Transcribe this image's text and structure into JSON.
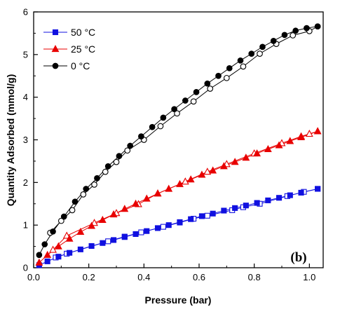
{
  "chart_data": {
    "type": "scatter",
    "xlabel": "Pressure (bar)",
    "ylabel": "Quantity Adsorbed (mmol/g)",
    "xlim": [
      0.0,
      1.05
    ],
    "ylim": [
      0,
      6
    ],
    "xticks": [
      "0.0",
      "0.2",
      "0.4",
      "0.6",
      "0.8",
      "1.0"
    ],
    "yticks": [
      "0",
      "1",
      "2",
      "3",
      "4",
      "5",
      "6"
    ],
    "grid": false,
    "legend_position": "top-left",
    "panel_label": "(b)",
    "series": [
      {
        "name": "50 °C",
        "color": "#1010e0",
        "marker": "square",
        "adsorption": {
          "x": [
            0.02,
            0.05,
            0.09,
            0.13,
            0.17,
            0.21,
            0.25,
            0.29,
            0.33,
            0.37,
            0.41,
            0.45,
            0.49,
            0.53,
            0.57,
            0.61,
            0.65,
            0.69,
            0.73,
            0.77,
            0.81,
            0.85,
            0.89,
            0.93,
            0.97,
            1.03
          ],
          "y": [
            0.06,
            0.15,
            0.26,
            0.35,
            0.43,
            0.51,
            0.58,
            0.65,
            0.72,
            0.79,
            0.86,
            0.93,
            1.0,
            1.07,
            1.14,
            1.21,
            1.27,
            1.34,
            1.4,
            1.46,
            1.52,
            1.58,
            1.64,
            1.7,
            1.76,
            1.85
          ]
        },
        "desorption": {
          "x": [
            0.08,
            0.12,
            0.27,
            0.33,
            0.39,
            0.47,
            0.53,
            0.58,
            0.63,
            0.72,
            0.76,
            0.82,
            0.92,
            0.98,
            1.03
          ],
          "y": [
            0.24,
            0.33,
            0.62,
            0.73,
            0.83,
            0.96,
            1.06,
            1.15,
            1.22,
            1.35,
            1.42,
            1.5,
            1.68,
            1.78,
            1.85
          ]
        }
      },
      {
        "name": "25 °C",
        "color": "#e80000",
        "marker": "triangle",
        "adsorption": {
          "x": [
            0.02,
            0.05,
            0.09,
            0.13,
            0.17,
            0.21,
            0.25,
            0.29,
            0.33,
            0.37,
            0.41,
            0.45,
            0.49,
            0.53,
            0.57,
            0.61,
            0.65,
            0.69,
            0.73,
            0.77,
            0.81,
            0.85,
            0.89,
            0.93,
            0.97,
            1.03
          ],
          "y": [
            0.12,
            0.3,
            0.5,
            0.68,
            0.84,
            0.98,
            1.12,
            1.25,
            1.38,
            1.5,
            1.62,
            1.74,
            1.85,
            1.96,
            2.07,
            2.18,
            2.28,
            2.38,
            2.48,
            2.58,
            2.68,
            2.78,
            2.87,
            2.97,
            3.06,
            3.2
          ]
        },
        "desorption": {
          "x": [
            0.07,
            0.12,
            0.22,
            0.3,
            0.38,
            0.45,
            0.55,
            0.63,
            0.7,
            0.8,
            0.9,
            0.97,
            1.0,
            1.03
          ],
          "y": [
            0.42,
            0.75,
            1.05,
            1.28,
            1.49,
            1.74,
            2.02,
            2.25,
            2.43,
            2.68,
            2.92,
            3.08,
            3.14,
            3.2
          ]
        }
      },
      {
        "name": "0 °C",
        "color": "#000000",
        "marker": "circle",
        "adsorption": {
          "x": [
            0.02,
            0.04,
            0.07,
            0.11,
            0.15,
            0.19,
            0.23,
            0.27,
            0.31,
            0.35,
            0.39,
            0.43,
            0.47,
            0.51,
            0.55,
            0.59,
            0.63,
            0.67,
            0.71,
            0.75,
            0.79,
            0.83,
            0.87,
            0.91,
            0.95,
            0.99,
            1.03
          ],
          "y": [
            0.3,
            0.55,
            0.85,
            1.2,
            1.55,
            1.85,
            2.1,
            2.38,
            2.62,
            2.86,
            3.08,
            3.3,
            3.52,
            3.72,
            3.92,
            4.12,
            4.32,
            4.5,
            4.68,
            4.86,
            5.02,
            5.18,
            5.32,
            5.46,
            5.56,
            5.62,
            5.66
          ]
        },
        "desorption": {
          "x": [
            0.06,
            0.1,
            0.14,
            0.18,
            0.22,
            0.26,
            0.3,
            0.34,
            0.4,
            0.46,
            0.52,
            0.58,
            0.64,
            0.7,
            0.76,
            0.82,
            0.88,
            0.94,
            1.0,
            1.03
          ],
          "y": [
            0.82,
            1.1,
            1.35,
            1.72,
            1.95,
            2.25,
            2.48,
            2.75,
            3.0,
            3.32,
            3.62,
            3.9,
            4.2,
            4.45,
            4.72,
            5.02,
            5.25,
            5.45,
            5.55,
            5.66
          ]
        }
      }
    ]
  }
}
